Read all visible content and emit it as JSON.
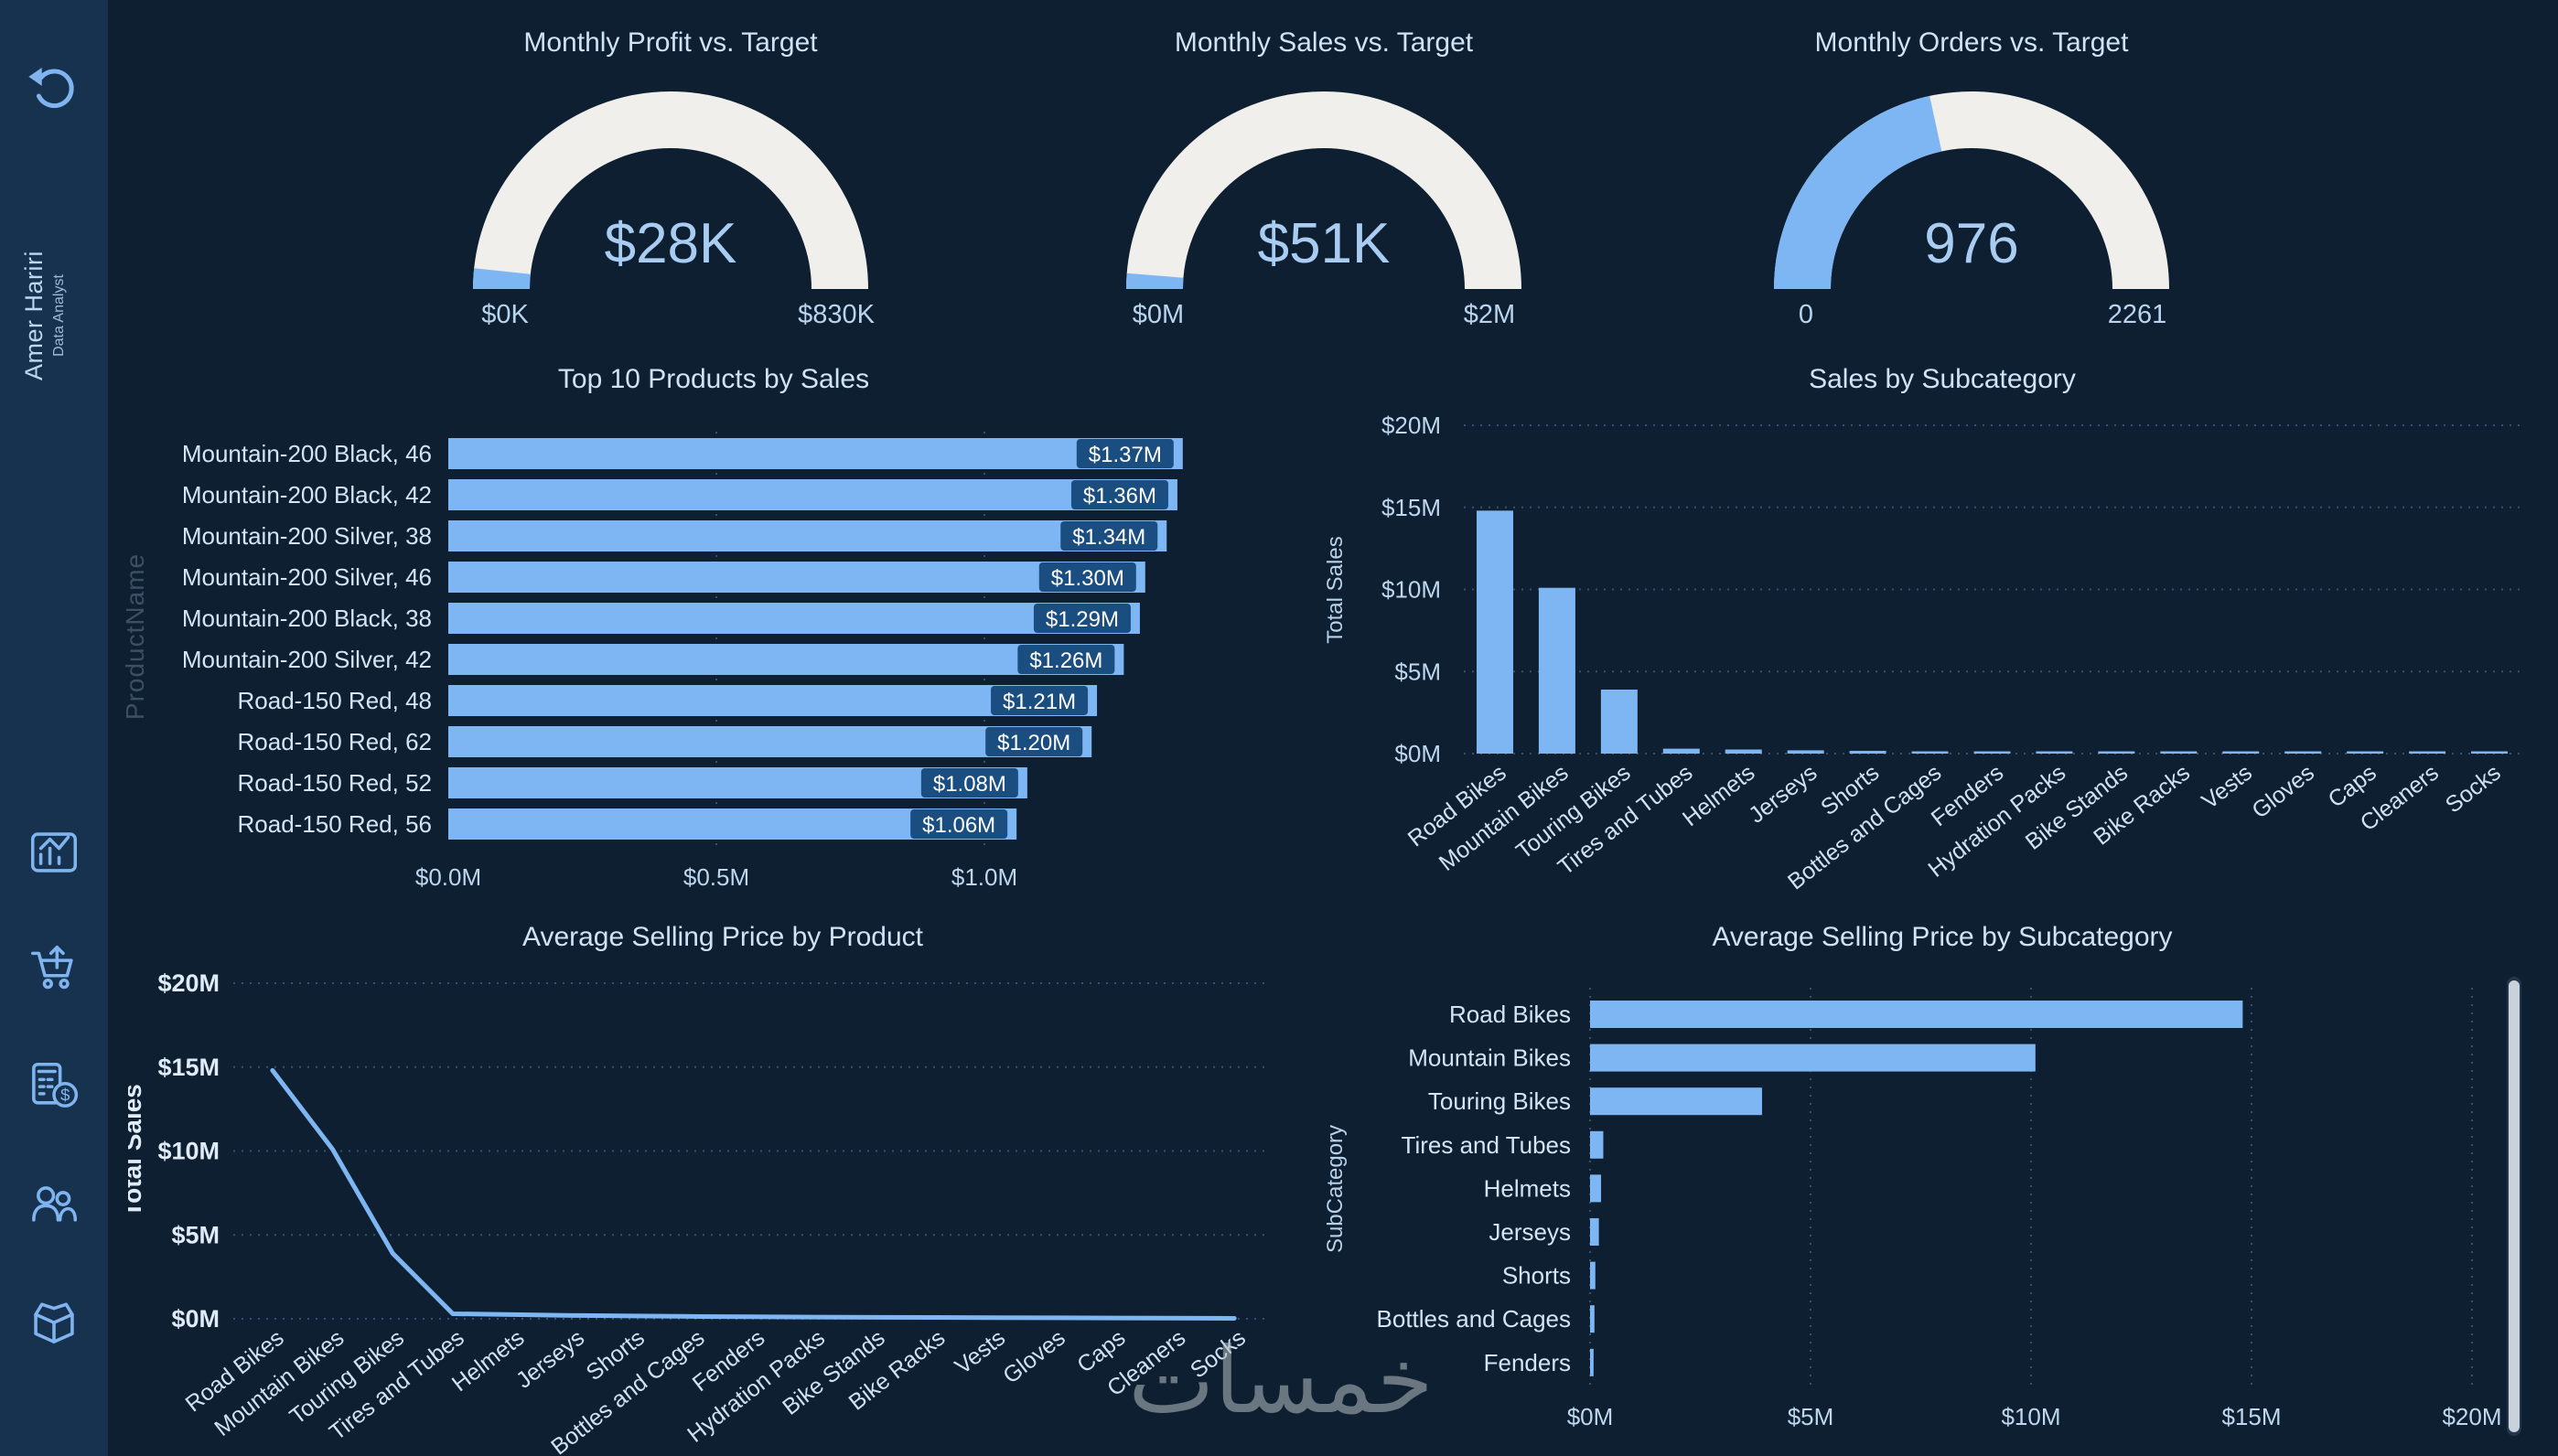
{
  "theme": {
    "background": "#0d1f30",
    "sidebar_bg": "#16324e",
    "accent": "#7db6f3",
    "gauge_track": "#f0efeb",
    "text": "#cfe3f6",
    "chip_bg": "#1a4d80",
    "chip_text": "#ffffff",
    "grid": "#466a8c",
    "scrollbar_thumb": "#c9d1da"
  },
  "sidebar": {
    "profile_name": "Amer Hariri",
    "profile_role": "Data Analyst"
  },
  "watermark": "خمسات",
  "chart_data": [
    {
      "id": "gauge-profit",
      "type": "gauge",
      "title": "Monthly Profit vs. Target",
      "value": 28,
      "min": 0,
      "max": 830,
      "value_label": "$28K",
      "min_label": "$0K",
      "max_label": "$830K"
    },
    {
      "id": "gauge-sales",
      "type": "gauge",
      "title": "Monthly Sales vs. Target",
      "value": 51,
      "min": 0,
      "max": 2000,
      "value_label": "$51K",
      "min_label": "$0M",
      "max_label": "$2M"
    },
    {
      "id": "gauge-orders",
      "type": "gauge",
      "title": "Monthly Orders vs. Target",
      "value": 976,
      "min": 0,
      "max": 2261,
      "value_label": "976",
      "min_label": "0",
      "max_label": "2261"
    },
    {
      "id": "top-products",
      "type": "bar",
      "orientation": "horizontal",
      "title": "Top 10 Products by Sales",
      "ylabel": "ProductName",
      "categories": [
        "Mountain-200 Black, 46",
        "Mountain-200 Black, 42",
        "Mountain-200 Silver, 38",
        "Mountain-200 Silver, 46",
        "Mountain-200 Black, 38",
        "Mountain-200 Silver, 42",
        "Road-150 Red, 48",
        "Road-150 Red, 62",
        "Road-150 Red, 52",
        "Road-150 Red, 56"
      ],
      "values": [
        1.37,
        1.36,
        1.34,
        1.3,
        1.29,
        1.26,
        1.21,
        1.2,
        1.08,
        1.06
      ],
      "value_labels": [
        "$1.37M",
        "$1.36M",
        "$1.34M",
        "$1.30M",
        "$1.29M",
        "$1.26M",
        "$1.21M",
        "$1.20M",
        "$1.08M",
        "$1.06M"
      ],
      "x_ticks": [
        {
          "value": 0,
          "label": "$0.0M"
        },
        {
          "value": 0.5,
          "label": "$0.5M"
        },
        {
          "value": 1,
          "label": "$1.0M"
        }
      ],
      "xlim": [
        0,
        1.45
      ]
    },
    {
      "id": "sales-by-subcategory",
      "type": "column",
      "title": "Sales by Subcategory",
      "ylabel": "Total Sales",
      "ylim": [
        0,
        20
      ],
      "categories": [
        "Road Bikes",
        "Mountain Bikes",
        "Touring Bikes",
        "Tires and Tubes",
        "Helmets",
        "Jerseys",
        "Shorts",
        "Bottles and Cages",
        "Fenders",
        "Hydration Packs",
        "Bike Stands",
        "Bike Racks",
        "Vests",
        "Gloves",
        "Caps",
        "Cleaners",
        "Socks"
      ],
      "values": [
        14.8,
        10.1,
        3.9,
        0.3,
        0.25,
        0.2,
        0.17,
        0.14,
        0.12,
        0.1,
        0.09,
        0.08,
        0.07,
        0.06,
        0.05,
        0.04,
        0.03
      ],
      "y_ticks": [
        {
          "value": 0,
          "label": "$0M"
        },
        {
          "value": 5,
          "label": "$5M"
        },
        {
          "value": 10,
          "label": "$10M"
        },
        {
          "value": 15,
          "label": "$15M"
        },
        {
          "value": 20,
          "label": "$20M"
        }
      ]
    },
    {
      "id": "avg-price-by-product",
      "type": "line",
      "title": "Average Selling Price by Product",
      "ylabel": "Total Sales",
      "ylim": [
        0,
        20
      ],
      "categories": [
        "Road Bikes",
        "Mountain Bikes",
        "Touring Bikes",
        "Tires and Tubes",
        "Helmets",
        "Jerseys",
        "Shorts",
        "Bottles and Cages",
        "Fenders",
        "Hydration Packs",
        "Bike Stands",
        "Bike Racks",
        "Vests",
        "Gloves",
        "Caps",
        "Cleaners",
        "Socks"
      ],
      "values": [
        14.8,
        10.1,
        3.9,
        0.3,
        0.25,
        0.2,
        0.17,
        0.14,
        0.12,
        0.1,
        0.09,
        0.08,
        0.07,
        0.06,
        0.05,
        0.04,
        0.03
      ],
      "y_ticks": [
        {
          "value": 0,
          "label": "$0M"
        },
        {
          "value": 5,
          "label": "$5M"
        },
        {
          "value": 10,
          "label": "$10M"
        },
        {
          "value": 15,
          "label": "$15M"
        },
        {
          "value": 20,
          "label": "$20M"
        }
      ]
    },
    {
      "id": "avg-price-by-subcategory",
      "type": "bar",
      "orientation": "horizontal",
      "title": "Average Selling Price by Subcategory",
      "ylabel": "SubCategory",
      "xlim": [
        0,
        20
      ],
      "categories": [
        "Road Bikes",
        "Mountain Bikes",
        "Touring Bikes",
        "Tires and Tubes",
        "Helmets",
        "Jerseys",
        "Shorts",
        "Bottles and Cages",
        "Fenders"
      ],
      "values": [
        14.8,
        10.1,
        3.9,
        0.3,
        0.25,
        0.2,
        0.12,
        0.1,
        0.08
      ],
      "x_ticks": [
        {
          "value": 0,
          "label": "$0M"
        },
        {
          "value": 5,
          "label": "$5M"
        },
        {
          "value": 10,
          "label": "$10M"
        },
        {
          "value": 15,
          "label": "$15M"
        },
        {
          "value": 20,
          "label": "$20M"
        }
      ]
    }
  ]
}
